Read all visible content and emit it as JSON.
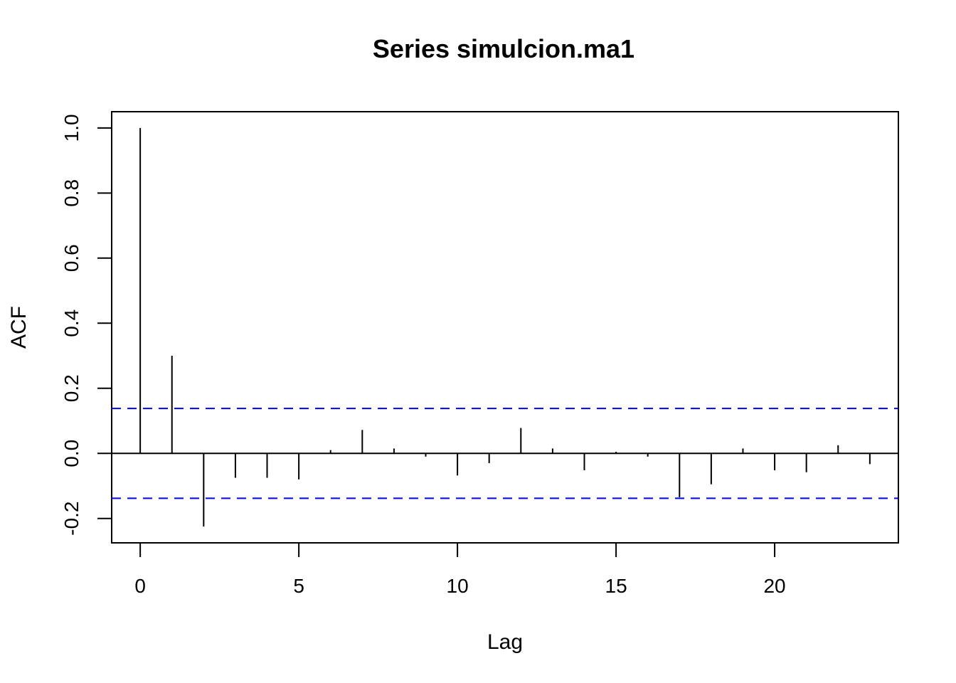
{
  "chart_data": {
    "type": "bar",
    "title": "Series  simulcion.ma1",
    "xlabel": "Lag",
    "ylabel": "ACF",
    "xlim": [
      -0.9,
      23.9
    ],
    "ylim": [
      -0.275,
      1.05
    ],
    "x_ticks": [
      0,
      5,
      10,
      15,
      20
    ],
    "y_ticks": [
      -0.2,
      0.0,
      0.2,
      0.4,
      0.6,
      0.8,
      1.0
    ],
    "y_tick_labels": [
      "-0.2",
      "0.0",
      "0.2",
      "0.4",
      "0.6",
      "0.8",
      "1.0"
    ],
    "x_tick_labels": [
      "0",
      "5",
      "10",
      "15",
      "20"
    ],
    "lags": [
      0,
      1,
      2,
      3,
      4,
      5,
      6,
      7,
      8,
      9,
      10,
      11,
      12,
      13,
      14,
      15,
      16,
      17,
      18,
      19,
      20,
      21,
      22,
      23
    ],
    "values": [
      1.0,
      0.3,
      -0.225,
      -0.075,
      -0.075,
      -0.08,
      0.01,
      0.072,
      0.015,
      -0.01,
      -0.068,
      -0.03,
      0.078,
      0.015,
      -0.052,
      0.005,
      -0.01,
      -0.135,
      -0.095,
      0.015,
      -0.052,
      -0.058,
      0.025,
      -0.033
    ],
    "confidence_bounds": [
      0.138,
      -0.138
    ],
    "confidence_color": "#0000ff",
    "bar_color": "#000000",
    "grid": false,
    "legend": "none"
  }
}
